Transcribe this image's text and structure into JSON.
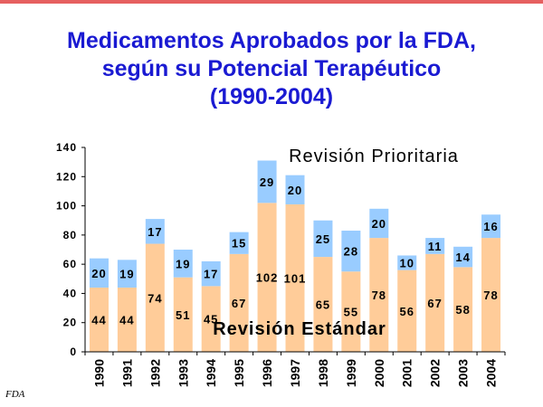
{
  "page": {
    "title_lines": [
      "Medicamentos Aprobados por la FDA,",
      "según su Potencial Terapéutico",
      "(1990-2004)"
    ],
    "source": "FDA"
  },
  "colors": {
    "title": "#1a1ad2",
    "top_rule": "#e66060",
    "standard": "#ffcc99",
    "priority": "#99ccff"
  },
  "chart_data": {
    "type": "bar",
    "stacked": true,
    "categories": [
      "1990",
      "1991",
      "1992",
      "1993",
      "1994",
      "1995",
      "1996",
      "1997",
      "1998",
      "1999",
      "2000",
      "2001",
      "2002",
      "2003",
      "2004"
    ],
    "series": [
      {
        "name": "Revisión Estándar",
        "color": "#ffcc99",
        "values": [
          44,
          44,
          74,
          51,
          45,
          67,
          102,
          101,
          65,
          55,
          78,
          56,
          67,
          58,
          78
        ]
      },
      {
        "name": "Revisión Prioritaria",
        "color": "#99ccff",
        "values": [
          20,
          19,
          17,
          19,
          17,
          15,
          29,
          20,
          25,
          28,
          20,
          10,
          11,
          14,
          16
        ]
      }
    ],
    "ylim": [
      0,
      140
    ],
    "yticks": [
      0,
      20,
      40,
      60,
      80,
      100,
      120,
      140
    ],
    "grid": false,
    "legend": "labels inside plot"
  }
}
